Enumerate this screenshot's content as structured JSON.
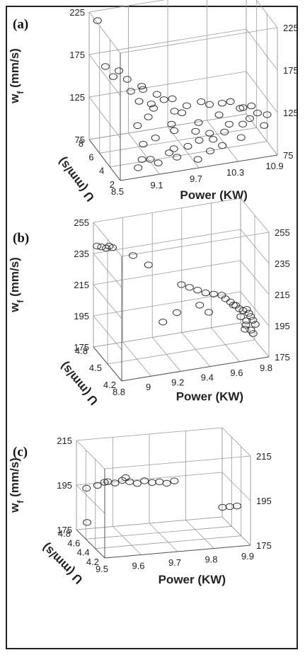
{
  "chart_data": [
    {
      "type": "scatter",
      "panel_label": "(a)",
      "xlabel": "Power (KW)",
      "ylabel": "U (mm/s)",
      "zlabel_main": "w",
      "zlabel_sub": "f",
      "zlabel_unit": " (mm/s)",
      "x_ticks": [
        "8.5",
        "9.1",
        "9.7",
        "10.3",
        "10.9"
      ],
      "y_ticks": [
        "2",
        "4",
        "6",
        "8"
      ],
      "z_ticks_left": [
        "75",
        "125",
        "175",
        "225"
      ],
      "z_ticks_right": [
        "75",
        "125",
        "175",
        "225"
      ],
      "xlim": [
        8.5,
        10.9
      ],
      "ylim": [
        2,
        9
      ],
      "zlim": [
        75,
        250
      ],
      "points": [
        [
          8.6,
          8.6,
          240
        ],
        [
          8.7,
          8.3,
          178
        ],
        [
          8.9,
          8.2,
          170
        ],
        [
          8.8,
          8.0,
          165
        ],
        [
          9.0,
          7.8,
          160
        ],
        [
          9.2,
          7.5,
          150
        ],
        [
          9.4,
          7.0,
          140
        ],
        [
          9.3,
          6.8,
          130
        ],
        [
          9.6,
          6.5,
          135
        ],
        [
          9.8,
          6.2,
          125
        ],
        [
          9.2,
          6.0,
          120
        ],
        [
          9.0,
          5.5,
          115
        ],
        [
          9.5,
          5.2,
          112
        ],
        [
          9.9,
          5.0,
          110
        ],
        [
          10.2,
          4.8,
          118
        ],
        [
          10.5,
          4.5,
          125
        ],
        [
          10.3,
          4.0,
          110
        ],
        [
          10.6,
          3.8,
          115
        ],
        [
          10.8,
          3.5,
          105
        ],
        [
          10.0,
          3.2,
          100
        ],
        [
          9.6,
          3.0,
          98
        ],
        [
          9.3,
          2.8,
          95
        ],
        [
          9.0,
          2.6,
          92
        ],
        [
          8.8,
          2.4,
          85
        ],
        [
          9.1,
          2.3,
          88
        ],
        [
          9.4,
          2.5,
          90
        ],
        [
          9.7,
          2.2,
          85
        ],
        [
          9.9,
          2.4,
          92
        ],
        [
          10.1,
          2.6,
          95
        ],
        [
          10.4,
          2.8,
          100
        ],
        [
          9.2,
          7.2,
          148
        ],
        [
          9.5,
          6.9,
          132
        ],
        [
          9.7,
          5.8,
          120
        ],
        [
          10.1,
          5.5,
          128
        ],
        [
          10.4,
          5.2,
          130
        ],
        [
          10.7,
          4.9,
          122
        ],
        [
          10.9,
          4.3,
          112
        ],
        [
          10.2,
          3.6,
          104
        ],
        [
          9.8,
          3.4,
          100
        ],
        [
          9.4,
          3.2,
          96
        ],
        [
          8.9,
          3.0,
          90
        ],
        [
          9.0,
          7.0,
          150
        ],
        [
          9.1,
          6.6,
          138
        ],
        [
          9.3,
          6.3,
          128
        ],
        [
          9.6,
          6.0,
          122
        ],
        [
          10.0,
          5.9,
          130
        ],
        [
          10.3,
          5.6,
          126
        ],
        [
          10.6,
          5.3,
          118
        ],
        [
          10.8,
          5.0,
          110
        ],
        [
          9.5,
          4.6,
          108
        ],
        [
          9.2,
          4.4,
          104
        ],
        [
          9.0,
          4.2,
          100
        ],
        [
          9.8,
          4.2,
          106
        ],
        [
          10.0,
          4.0,
          102
        ],
        [
          10.5,
          3.9,
          108
        ]
      ]
    },
    {
      "type": "scatter",
      "panel_label": "(b)",
      "xlabel": "Power (KW)",
      "ylabel": "U (mm/s)",
      "zlabel_main": "w",
      "zlabel_sub": "f",
      "zlabel_unit": " (mm/s)",
      "x_ticks": [
        "8.8",
        "9",
        "9.2",
        "9.4",
        "9.6",
        "9.8"
      ],
      "y_ticks": [
        "4.2",
        "4.5",
        "4.8"
      ],
      "z_ticks_left": [
        "175",
        "195",
        "215",
        "235",
        "255"
      ],
      "z_ticks_right": [
        "175",
        "195",
        "215",
        "235",
        "255"
      ],
      "xlim": [
        8.8,
        9.8
      ],
      "ylim": [
        4.2,
        5.0
      ],
      "zlim": [
        175,
        255
      ],
      "points": [
        [
          8.82,
          4.98,
          240
        ],
        [
          8.85,
          4.98,
          239
        ],
        [
          8.88,
          4.97,
          238
        ],
        [
          8.9,
          4.97,
          239
        ],
        [
          8.92,
          4.96,
          238
        ],
        [
          9.05,
          4.92,
          232
        ],
        [
          9.15,
          4.9,
          225
        ],
        [
          9.35,
          4.8,
          212
        ],
        [
          9.4,
          4.78,
          210
        ],
        [
          9.45,
          4.76,
          208
        ],
        [
          9.5,
          4.74,
          206
        ],
        [
          9.55,
          4.72,
          205
        ],
        [
          9.6,
          4.7,
          204
        ],
        [
          9.62,
          4.68,
          202
        ],
        [
          9.65,
          4.66,
          200
        ],
        [
          9.68,
          4.64,
          198
        ],
        [
          9.7,
          4.62,
          196
        ],
        [
          9.72,
          4.6,
          195
        ],
        [
          9.74,
          4.58,
          196
        ],
        [
          9.75,
          4.56,
          194
        ],
        [
          9.76,
          4.55,
          192
        ],
        [
          9.77,
          4.53,
          190
        ],
        [
          9.78,
          4.5,
          188
        ],
        [
          9.76,
          4.48,
          183
        ],
        [
          9.74,
          4.46,
          186
        ],
        [
          9.45,
          4.7,
          200
        ],
        [
          9.5,
          4.65,
          196
        ],
        [
          9.3,
          4.72,
          197
        ],
        [
          9.2,
          4.7,
          193
        ],
        [
          9.66,
          4.62,
          199
        ],
        [
          9.7,
          4.58,
          192
        ],
        [
          9.73,
          4.54,
          190
        ],
        [
          9.72,
          4.52,
          188
        ],
        [
          9.71,
          4.5,
          186
        ]
      ]
    },
    {
      "type": "scatter",
      "panel_label": "(c)",
      "xlabel": "Power (KW)",
      "ylabel": "U (mm/s)",
      "zlabel_main": "w",
      "zlabel_sub": "f",
      "zlabel_unit": " (mm/s)",
      "x_ticks": [
        "9.5",
        "9.6",
        "9.7",
        "9.8",
        "9.9"
      ],
      "y_ticks": [
        "4.2",
        "4.4",
        "4.6",
        "4.8"
      ],
      "z_ticks_left": [
        "175",
        "195",
        "215"
      ],
      "z_ticks_right": [
        "175",
        "195",
        "215"
      ],
      "xlim": [
        9.5,
        9.9
      ],
      "ylim": [
        4.2,
        5.0
      ],
      "zlim": [
        175,
        220
      ],
      "points": [
        [
          9.52,
          4.92,
          197
        ],
        [
          9.55,
          4.92,
          198
        ],
        [
          9.57,
          4.93,
          199
        ],
        [
          9.58,
          4.94,
          199
        ],
        [
          9.6,
          4.94,
          198
        ],
        [
          9.62,
          4.94,
          199
        ],
        [
          9.63,
          4.95,
          200
        ],
        [
          9.64,
          4.94,
          198
        ],
        [
          9.66,
          4.93,
          197
        ],
        [
          9.68,
          4.93,
          198
        ],
        [
          9.7,
          4.92,
          197
        ],
        [
          9.72,
          4.92,
          197
        ],
        [
          9.74,
          4.92,
          196
        ],
        [
          9.76,
          4.91,
          197
        ],
        [
          9.5,
          4.7,
          184
        ],
        [
          9.86,
          4.58,
          188
        ],
        [
          9.88,
          4.58,
          188
        ],
        [
          9.9,
          4.58,
          188
        ]
      ]
    }
  ]
}
